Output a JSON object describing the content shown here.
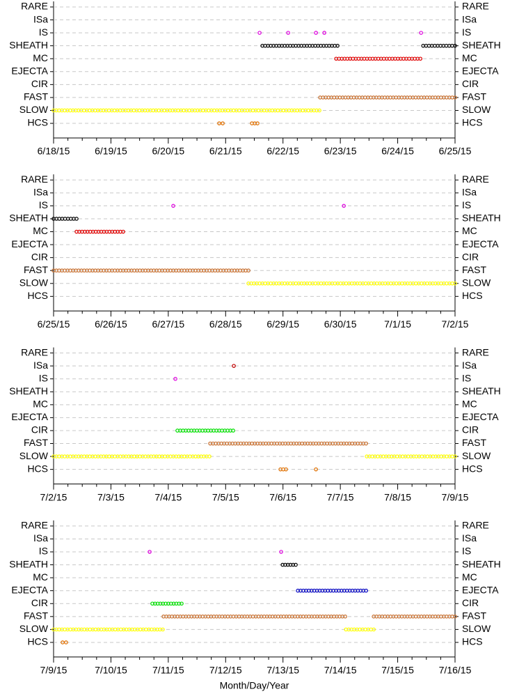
{
  "chart_data": [
    {
      "type": "timeline",
      "categories": [
        "RARE",
        "ISa",
        "IS",
        "SHEATH",
        "MC",
        "EJECTA",
        "CIR",
        "FAST",
        "SLOW",
        "HCS"
      ],
      "colors": [
        "#808080",
        "#c00000",
        "#e000e0",
        "#000000",
        "#e00000",
        "#0000c0",
        "#00e000",
        "#c87030",
        "#ffff00",
        "#e07000"
      ],
      "grid": true,
      "xlim": [
        "2015-06-18T00:00",
        "2015-06-25T00:00"
      ],
      "xticks": [
        {
          "value": "2015-06-18T00:00",
          "label": "6/18/15"
        },
        {
          "value": "2015-06-19T00:00",
          "label": "6/19/15"
        },
        {
          "value": "2015-06-20T00:00",
          "label": "6/20/15"
        },
        {
          "value": "2015-06-21T00:00",
          "label": "6/21/15"
        },
        {
          "value": "2015-06-22T00:00",
          "label": "6/22/15"
        },
        {
          "value": "2015-06-23T00:00",
          "label": "6/23/15"
        },
        {
          "value": "2015-06-24T00:00",
          "label": "6/24/15"
        },
        {
          "value": "2015-06-25T00:00",
          "label": "6/25/15"
        }
      ],
      "runs": [
        {
          "y": "IS",
          "x": [
            "2015-06-21T14:13",
            "2015-06-21T14:13"
          ]
        },
        {
          "y": "IS",
          "x": [
            "2015-06-22T02:10",
            "2015-06-22T02:10"
          ]
        },
        {
          "y": "IS",
          "x": [
            "2015-06-22T13:48",
            "2015-06-22T13:48"
          ]
        },
        {
          "y": "IS",
          "x": [
            "2015-06-22T17:18",
            "2015-06-22T17:18"
          ]
        },
        {
          "y": "IS",
          "x": [
            "2015-06-24T09:47",
            "2015-06-24T09:47"
          ]
        },
        {
          "y": "SHEATH",
          "x": [
            "2015-06-21T15:23",
            "2015-06-22T22:50"
          ]
        },
        {
          "y": "SHEATH",
          "x": [
            "2015-06-24T10:40",
            "2015-06-25T00:00"
          ]
        },
        {
          "y": "MC",
          "x": [
            "2015-06-22T22:15",
            "2015-06-24T09:30"
          ]
        },
        {
          "y": "FAST",
          "x": [
            "2015-06-22T15:33",
            "2015-06-25T00:00"
          ]
        },
        {
          "y": "SLOW",
          "x": [
            "2015-06-18T00:00",
            "2015-06-22T15:15"
          ]
        },
        {
          "y": "HCS",
          "x": [
            "2015-06-20T21:18",
            "2015-06-20T22:47"
          ]
        },
        {
          "y": "HCS",
          "x": [
            "2015-06-21T11:00",
            "2015-06-21T13:20"
          ]
        }
      ]
    },
    {
      "type": "timeline",
      "categories": [
        "RARE",
        "ISa",
        "IS",
        "SHEATH",
        "MC",
        "EJECTA",
        "CIR",
        "FAST",
        "SLOW",
        "HCS"
      ],
      "colors": [
        "#808080",
        "#c00000",
        "#e000e0",
        "#000000",
        "#e00000",
        "#0000c0",
        "#00e000",
        "#c87030",
        "#ffff00",
        "#e07000"
      ],
      "grid": true,
      "xlim": [
        "2015-06-25T00:00",
        "2015-07-02T00:00"
      ],
      "xticks": [
        {
          "value": "2015-06-25T00:00",
          "label": "6/25/15"
        },
        {
          "value": "2015-06-26T00:00",
          "label": "6/26/15"
        },
        {
          "value": "2015-06-27T00:00",
          "label": "6/27/15"
        },
        {
          "value": "2015-06-28T00:00",
          "label": "6/28/15"
        },
        {
          "value": "2015-06-29T00:00",
          "label": "6/29/15"
        },
        {
          "value": "2015-06-30T00:00",
          "label": "6/30/15"
        },
        {
          "value": "2015-07-01T00:00",
          "label": "7/1/15"
        },
        {
          "value": "2015-07-02T00:00",
          "label": "7/2/15"
        }
      ],
      "runs": [
        {
          "y": "IS",
          "x": [
            "2015-06-27T02:05",
            "2015-06-27T02:05"
          ]
        },
        {
          "y": "IS",
          "x": [
            "2015-06-30T01:28",
            "2015-06-30T01:28"
          ]
        },
        {
          "y": "SHEATH",
          "x": [
            "2015-06-25T00:00",
            "2015-06-25T09:37"
          ]
        },
        {
          "y": "MC",
          "x": [
            "2015-06-25T09:37",
            "2015-06-26T05:08"
          ]
        },
        {
          "y": "FAST",
          "x": [
            "2015-06-25T00:00",
            "2015-06-28T09:33"
          ]
        },
        {
          "y": "SLOW",
          "x": [
            "2015-06-28T09:33",
            "2015-07-02T00:00"
          ]
        }
      ]
    },
    {
      "type": "timeline",
      "categories": [
        "RARE",
        "ISa",
        "IS",
        "SHEATH",
        "MC",
        "EJECTA",
        "CIR",
        "FAST",
        "SLOW",
        "HCS"
      ],
      "colors": [
        "#808080",
        "#c00000",
        "#e000e0",
        "#000000",
        "#e00000",
        "#0000c0",
        "#00e000",
        "#c87030",
        "#ffff00",
        "#e07000"
      ],
      "grid": true,
      "xlim": [
        "2015-07-02T00:00",
        "2015-07-09T00:00"
      ],
      "xticks": [
        {
          "value": "2015-07-02T00:00",
          "label": "7/2/15"
        },
        {
          "value": "2015-07-03T00:00",
          "label": "7/3/15"
        },
        {
          "value": "2015-07-04T00:00",
          "label": "7/4/15"
        },
        {
          "value": "2015-07-05T00:00",
          "label": "7/5/15"
        },
        {
          "value": "2015-07-06T00:00",
          "label": "7/6/15"
        },
        {
          "value": "2015-07-07T00:00",
          "label": "7/7/15"
        },
        {
          "value": "2015-07-08T00:00",
          "label": "7/8/15"
        },
        {
          "value": "2015-07-09T00:00",
          "label": "7/9/15"
        }
      ],
      "runs": [
        {
          "y": "ISa",
          "x": [
            "2015-07-05T03:26",
            "2015-07-05T03:26"
          ]
        },
        {
          "y": "IS",
          "x": [
            "2015-07-04T02:58",
            "2015-07-04T02:58"
          ]
        },
        {
          "y": "CIR",
          "x": [
            "2015-07-04T03:50",
            "2015-07-05T03:09"
          ]
        },
        {
          "y": "FAST",
          "x": [
            "2015-07-04T17:33",
            "2015-07-07T10:47"
          ]
        },
        {
          "y": "SLOW",
          "x": [
            "2015-07-02T00:00",
            "2015-07-04T17:14"
          ]
        },
        {
          "y": "SLOW",
          "x": [
            "2015-07-07T11:04",
            "2015-07-09T00:00"
          ]
        },
        {
          "y": "HCS",
          "x": [
            "2015-07-05T22:57",
            "2015-07-06T01:16"
          ]
        },
        {
          "y": "HCS",
          "x": [
            "2015-07-06T13:48",
            "2015-07-06T13:48"
          ]
        }
      ]
    },
    {
      "type": "timeline",
      "categories": [
        "RARE",
        "ISa",
        "IS",
        "SHEATH",
        "MC",
        "EJECTA",
        "CIR",
        "FAST",
        "SLOW",
        "HCS"
      ],
      "colors": [
        "#808080",
        "#c00000",
        "#e000e0",
        "#000000",
        "#e00000",
        "#0000c0",
        "#00e000",
        "#c87030",
        "#ffff00",
        "#e07000"
      ],
      "grid": true,
      "xlabel": "Month/Day/Year",
      "xlim": [
        "2015-07-09T00:00",
        "2015-07-16T00:00"
      ],
      "xticks": [
        {
          "value": "2015-07-09T00:00",
          "label": "7/9/15"
        },
        {
          "value": "2015-07-10T00:00",
          "label": "7/10/15"
        },
        {
          "value": "2015-07-11T00:00",
          "label": "7/11/15"
        },
        {
          "value": "2015-07-12T00:00",
          "label": "7/12/15"
        },
        {
          "value": "2015-07-13T00:00",
          "label": "7/13/15"
        },
        {
          "value": "2015-07-14T00:00",
          "label": "7/14/15"
        },
        {
          "value": "2015-07-15T00:00",
          "label": "7/15/15"
        },
        {
          "value": "2015-07-16T00:00",
          "label": "7/16/15"
        }
      ],
      "runs": [
        {
          "y": "IS",
          "x": [
            "2015-07-10T16:12",
            "2015-07-10T16:12"
          ]
        },
        {
          "y": "IS",
          "x": [
            "2015-07-12T23:14",
            "2015-07-12T23:14"
          ]
        },
        {
          "y": "SHEATH",
          "x": [
            "2015-07-12T23:50",
            "2015-07-13T05:21"
          ]
        },
        {
          "y": "EJECTA",
          "x": [
            "2015-07-13T06:14",
            "2015-07-14T10:47"
          ]
        },
        {
          "y": "CIR",
          "x": [
            "2015-07-10T17:21",
            "2015-07-11T05:35"
          ]
        },
        {
          "y": "FAST",
          "x": [
            "2015-07-10T22:01",
            "2015-07-14T02:02"
          ]
        },
        {
          "y": "FAST",
          "x": [
            "2015-07-14T13:59",
            "2015-07-16T00:00"
          ]
        },
        {
          "y": "SLOW",
          "x": [
            "2015-07-09T00:00",
            "2015-07-10T21:43"
          ]
        },
        {
          "y": "SLOW",
          "x": [
            "2015-07-14T02:20",
            "2015-07-14T13:59"
          ]
        },
        {
          "y": "HCS",
          "x": [
            "2015-07-09T03:47",
            "2015-07-09T05:14"
          ]
        }
      ]
    }
  ]
}
